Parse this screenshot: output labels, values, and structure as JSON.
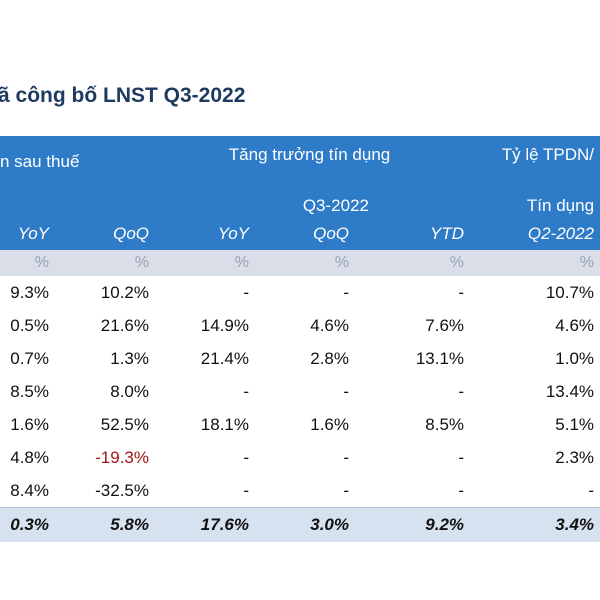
{
  "title": "ã công bố LNST Q3-2022",
  "header": {
    "group_profit": "n sau thuế",
    "group_credit_line1": "Tăng trưởng tín dụng",
    "group_credit_line2": "Q3-2022",
    "group_ratio_line1": "Tỷ lệ TPDN/",
    "group_ratio_line2": "Tín dụng",
    "cols": [
      "YoY",
      "QoQ",
      "YoY",
      "QoQ",
      "YTD",
      "Q2-2022"
    ]
  },
  "units": [
    "%",
    "%",
    "%",
    "%",
    "%",
    "%"
  ],
  "rows": [
    [
      "9.3%",
      "10.2%",
      "-",
      "-",
      "-",
      "10.7%"
    ],
    [
      "0.5%",
      "21.6%",
      "14.9%",
      "4.6%",
      "7.6%",
      "4.6%"
    ],
    [
      "0.7%",
      "1.3%",
      "21.4%",
      "2.8%",
      "13.1%",
      "1.0%"
    ],
    [
      "8.5%",
      "8.0%",
      "-",
      "-",
      "-",
      "13.4%"
    ],
    [
      "1.6%",
      "52.5%",
      "18.1%",
      "1.6%",
      "8.5%",
      "5.1%"
    ],
    [
      "4.8%",
      "-19.3%",
      "-",
      "-",
      "-",
      "2.3%"
    ],
    [
      "8.4%",
      "-32.5%",
      "-",
      "-",
      "-",
      "-"
    ]
  ],
  "negative_color": "#a01414",
  "total": [
    "0.3%",
    "5.8%",
    "17.6%",
    "3.0%",
    "9.2%",
    "3.4%"
  ]
}
